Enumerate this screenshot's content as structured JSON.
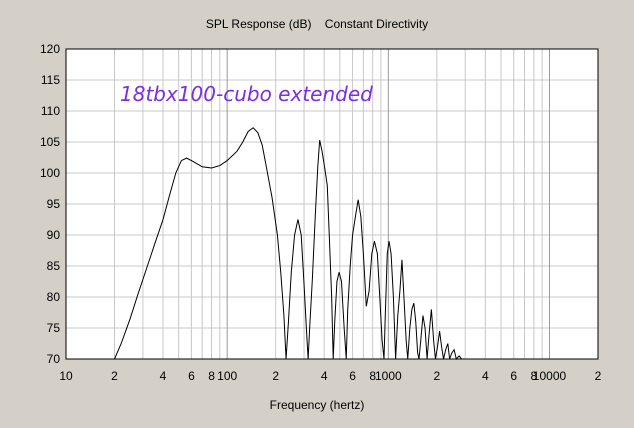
{
  "chart_data": {
    "type": "line",
    "title": "SPL Response (dB)    Constant Directivity",
    "xlabel": "Frequency (hertz)",
    "ylabel": "",
    "annotation": "18tbx100-cubo extended",
    "x_scale": "log",
    "xlim": [
      10,
      20000
    ],
    "ylim": [
      70,
      120
    ],
    "grid": true,
    "colors": {
      "background": "#d4d0c8",
      "plot_area": "#ffffff",
      "line": "#000000",
      "annotation": "#7b2fe0",
      "grid": "#c8c8c8"
    },
    "y_ticks": [
      {
        "value": 70,
        "label": "70"
      },
      {
        "value": 75,
        "label": "75"
      },
      {
        "value": 80,
        "label": "80"
      },
      {
        "value": 85,
        "label": "85"
      },
      {
        "value": 90,
        "label": "90"
      },
      {
        "value": 95,
        "label": "95"
      },
      {
        "value": 100,
        "label": "100"
      },
      {
        "value": 105,
        "label": "105"
      },
      {
        "value": 110,
        "label": "110"
      },
      {
        "value": 115,
        "label": "115"
      },
      {
        "value": 120,
        "label": "120"
      }
    ],
    "x_ticks": [
      {
        "value": 10,
        "label": "10"
      },
      {
        "value": 20,
        "label": "2"
      },
      {
        "value": 40,
        "label": "4"
      },
      {
        "value": 60,
        "label": "6"
      },
      {
        "value": 80,
        "label": "8"
      },
      {
        "value": 100,
        "label": "100"
      },
      {
        "value": 200,
        "label": "2"
      },
      {
        "value": 400,
        "label": "4"
      },
      {
        "value": 600,
        "label": "6"
      },
      {
        "value": 800,
        "label": "8"
      },
      {
        "value": 1000,
        "label": "1000"
      },
      {
        "value": 2000,
        "label": "2"
      },
      {
        "value": 4000,
        "label": "4"
      },
      {
        "value": 6000,
        "label": "6"
      },
      {
        "value": 8000,
        "label": "8"
      },
      {
        "value": 10000,
        "label": "10000"
      },
      {
        "value": 20000,
        "label": "2"
      }
    ],
    "series": [
      {
        "name": "",
        "points": [
          [
            20,
            70
          ],
          [
            22,
            72.5
          ],
          [
            25,
            76.5
          ],
          [
            28,
            80.5
          ],
          [
            32,
            85
          ],
          [
            36,
            89
          ],
          [
            40,
            92.5
          ],
          [
            44,
            96.5
          ],
          [
            48,
            100
          ],
          [
            52,
            102
          ],
          [
            56,
            102.4
          ],
          [
            60,
            102
          ],
          [
            70,
            101
          ],
          [
            80,
            100.8
          ],
          [
            90,
            101.2
          ],
          [
            100,
            102
          ],
          [
            115,
            103.5
          ],
          [
            125,
            105
          ],
          [
            135,
            106.7
          ],
          [
            145,
            107.3
          ],
          [
            155,
            106.5
          ],
          [
            165,
            104.5
          ],
          [
            175,
            101
          ],
          [
            190,
            96
          ],
          [
            205,
            90
          ],
          [
            215,
            84
          ],
          [
            225,
            77
          ],
          [
            232,
            70
          ],
          [
            240,
            76
          ],
          [
            250,
            84
          ],
          [
            262,
            90
          ],
          [
            275,
            92.5
          ],
          [
            288,
            90
          ],
          [
            300,
            82
          ],
          [
            310,
            75
          ],
          [
            318,
            70
          ],
          [
            325,
            75
          ],
          [
            338,
            83
          ],
          [
            352,
            93
          ],
          [
            365,
            101
          ],
          [
            375,
            105.3
          ],
          [
            388,
            103.5
          ],
          [
            402,
            101
          ],
          [
            418,
            98
          ],
          [
            430,
            90
          ],
          [
            445,
            80
          ],
          [
            455,
            70
          ],
          [
            465,
            76
          ],
          [
            480,
            82.5
          ],
          [
            495,
            84
          ],
          [
            512,
            82.5
          ],
          [
            532,
            75
          ],
          [
            548,
            70
          ],
          [
            560,
            78
          ],
          [
            580,
            85
          ],
          [
            600,
            90
          ],
          [
            625,
            93
          ],
          [
            650,
            95.7
          ],
          [
            675,
            93
          ],
          [
            700,
            87
          ],
          [
            730,
            78.5
          ],
          [
            760,
            81
          ],
          [
            790,
            87
          ],
          [
            820,
            89
          ],
          [
            855,
            87
          ],
          [
            885,
            80
          ],
          [
            915,
            73
          ],
          [
            940,
            70
          ],
          [
            960,
            78
          ],
          [
            985,
            87
          ],
          [
            1010,
            89
          ],
          [
            1040,
            87
          ],
          [
            1075,
            80
          ],
          [
            1110,
            70
          ],
          [
            1145,
            77
          ],
          [
            1180,
            81
          ],
          [
            1215,
            86
          ],
          [
            1250,
            80
          ],
          [
            1290,
            73
          ],
          [
            1320,
            70
          ],
          [
            1360,
            75
          ],
          [
            1400,
            78
          ],
          [
            1440,
            79
          ],
          [
            1480,
            76
          ],
          [
            1520,
            71
          ],
          [
            1550,
            70
          ],
          [
            1590,
            73
          ],
          [
            1640,
            77
          ],
          [
            1690,
            75
          ],
          [
            1740,
            70
          ],
          [
            1790,
            74
          ],
          [
            1850,
            78
          ],
          [
            1910,
            73
          ],
          [
            1960,
            70
          ],
          [
            2020,
            72
          ],
          [
            2080,
            74.5
          ],
          [
            2140,
            72
          ],
          [
            2200,
            70
          ],
          [
            2270,
            71.5
          ],
          [
            2340,
            72.5
          ],
          [
            2400,
            70
          ],
          [
            2480,
            71
          ],
          [
            2560,
            71.5
          ],
          [
            2640,
            70
          ],
          [
            2750,
            70.5
          ],
          [
            2850,
            70
          ],
          [
            3000,
            70
          ]
        ]
      }
    ]
  }
}
